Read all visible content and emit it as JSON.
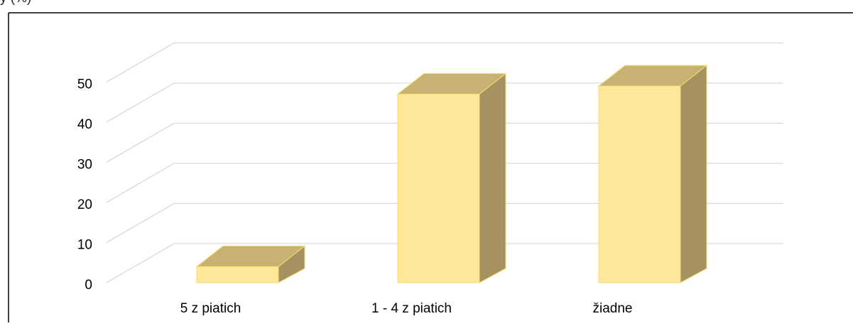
{
  "header": {
    "clipped_title": "y                           (%)"
  },
  "chart_data": {
    "type": "bar",
    "subtype": "3d-column",
    "categories": [
      "5 z piatich",
      "1 - 4 z piatich",
      "žiadne"
    ],
    "values": [
      4,
      47,
      49
    ],
    "ylim": [
      0,
      50
    ],
    "yticks": [
      0,
      10,
      20,
      30,
      40,
      50
    ],
    "title": "",
    "xlabel": "",
    "ylabel": "",
    "grid": true,
    "legend": "none",
    "colors": {
      "bar_front": "#FEE799",
      "bar_top": "#C7B274",
      "bar_side": "#A69160",
      "bar_edge": "#F2DC70",
      "grid": "#D9D9D9",
      "frame": "#000000"
    }
  }
}
